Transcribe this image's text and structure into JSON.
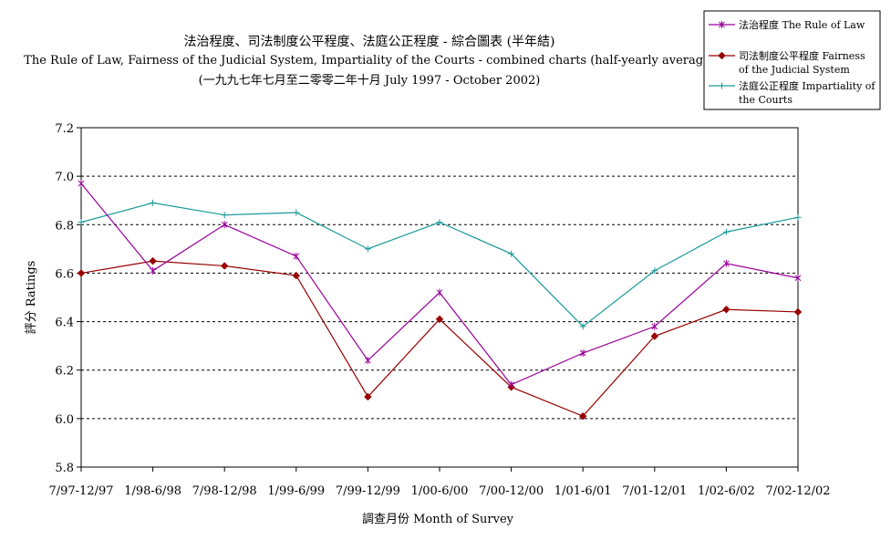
{
  "chart_data": {
    "type": "line",
    "title": "法治程度、司法制度公平程度、法庭公正程度 - 綜合圖表 (半年結)",
    "subtitle": "The Rule of Law, Fairness of the Judicial System, Impartiality of the Courts - combined charts (half-yearly average)",
    "subtitle2": "(一九九七年七月至二零零二年十月 July 1997 - October 2002)",
    "xlabel": "調查月份 Month of Survey",
    "ylabel": "評分 Ratings",
    "categories": [
      "7/97-12/97",
      "1/98-6/98",
      "7/98-12/98",
      "1/99-6/99",
      "7/99-12/99",
      "1/00-6/00",
      "7/00-12/00",
      "1/01-6/01",
      "7/01-12/01",
      "1/02-6/02",
      "7/02-12/02"
    ],
    "ylim": [
      5.8,
      7.2
    ],
    "yticks": [
      "5.8",
      "6.0",
      "6.2",
      "6.4",
      "6.6",
      "6.8",
      "7.0",
      "7.2"
    ],
    "grid": true,
    "legend_position": "top-right",
    "series": [
      {
        "name_line1": "法治程度 The Rule of Law",
        "name_line2": "",
        "color": "#990099",
        "marker": "star",
        "values": [
          6.97,
          6.61,
          6.8,
          6.67,
          6.24,
          6.52,
          6.14,
          6.27,
          6.38,
          6.64,
          6.58
        ]
      },
      {
        "name_line1": "司法制度公平程度 Fairness",
        "name_line2": "of the Judicial System",
        "color": "#990000",
        "marker": "diamond",
        "values": [
          6.6,
          6.65,
          6.63,
          6.59,
          6.09,
          6.41,
          6.13,
          6.01,
          6.34,
          6.45,
          6.44
        ]
      },
      {
        "name_line1": "法庭公正程度 Impartiality of",
        "name_line2": "the Courts",
        "color": "#1a9a9a",
        "marker": "plus",
        "values": [
          6.81,
          6.89,
          6.84,
          6.85,
          6.7,
          6.81,
          6.68,
          6.38,
          6.61,
          6.77,
          6.83
        ]
      }
    ]
  }
}
